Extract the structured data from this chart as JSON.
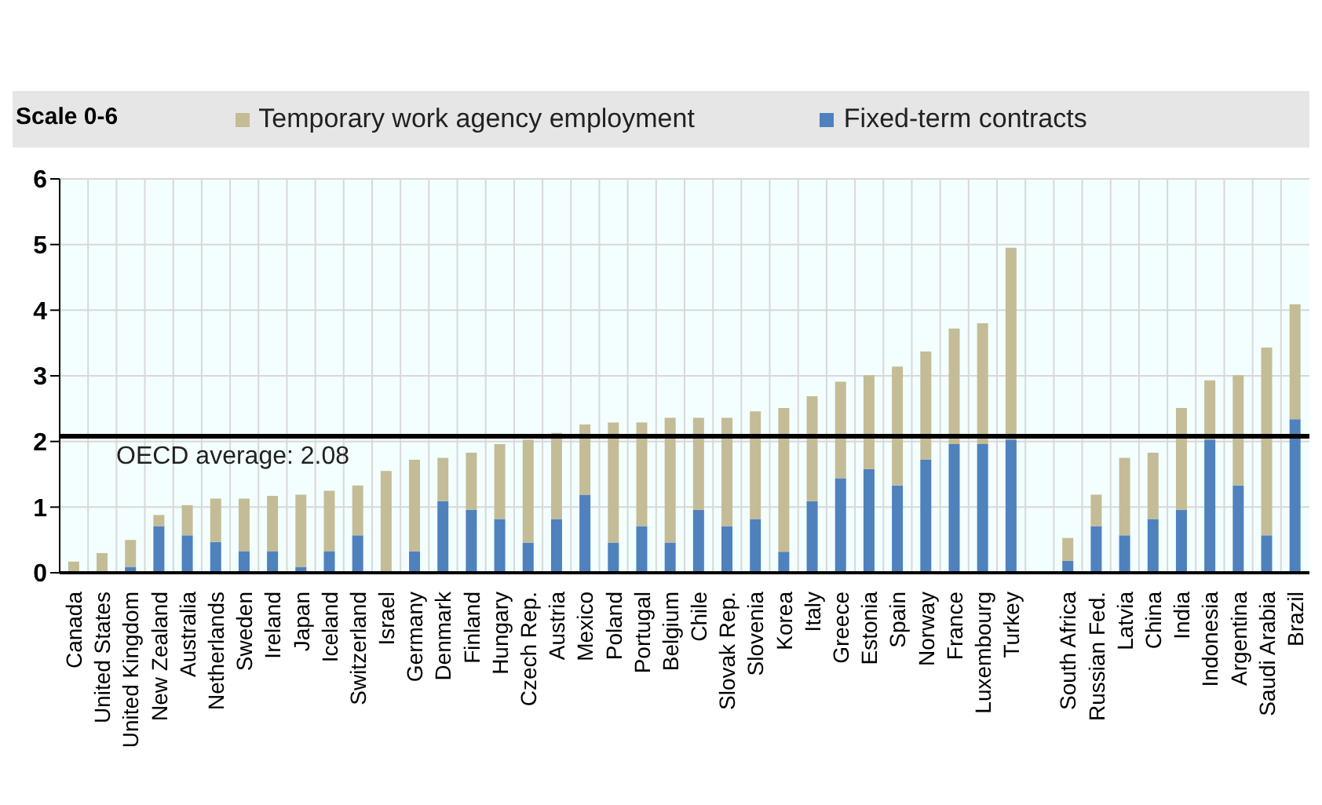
{
  "chart_data": {
    "type": "bar",
    "stacked": true,
    "ylabel": "Scale 0-6",
    "categories": [
      "Canada",
      "United States",
      "United Kingdom",
      "New Zealand",
      "Australia",
      "Netherlands",
      "Sweden",
      "Ireland",
      "Japan",
      "Iceland",
      "Switzerland",
      "Israel",
      "Germany",
      "Denmark",
      "Finland",
      "Hungary",
      "Czech Rep.",
      "Austria",
      "Mexico",
      "Poland",
      "Portugal",
      "Belgium",
      "Chile",
      "Slovak Rep.",
      "Slovenia",
      "Korea",
      "Italy",
      "Greece",
      "Estonia",
      "Spain",
      "Norway",
      "France",
      "Luxembourg",
      "Turkey",
      null,
      "South Africa",
      "Russian Fed.",
      "Latvia",
      "China",
      "India",
      "Indonesia",
      "Argentina",
      "Saudi Arabia",
      "Brazil"
    ],
    "series": [
      {
        "name": "Fixed-term contracts",
        "color": "#4f81bd",
        "values": [
          0,
          0,
          0.09,
          0.71,
          0.57,
          0.47,
          0.33,
          0.33,
          0.09,
          0.33,
          0.57,
          0,
          0.33,
          1.09,
          0.96,
          0.82,
          0.46,
          0.82,
          1.19,
          0.46,
          0.71,
          0.46,
          0.96,
          0.71,
          0.82,
          0.32,
          1.09,
          1.44,
          1.58,
          1.33,
          1.72,
          1.96,
          1.96,
          2.03,
          null,
          0.18,
          0.71,
          0.57,
          0.82,
          0.96,
          2.03,
          1.33,
          0.57,
          2.34
        ]
      },
      {
        "name": "Temporary work agency employment",
        "color": "#c4bc96",
        "values": [
          0.17,
          0.3,
          0.41,
          0.17,
          0.46,
          0.66,
          0.8,
          0.84,
          1.1,
          0.92,
          0.76,
          1.55,
          1.39,
          0.66,
          0.87,
          1.14,
          1.57,
          1.31,
          1.07,
          1.83,
          1.58,
          1.9,
          1.4,
          1.65,
          1.64,
          2.19,
          1.6,
          1.47,
          1.43,
          1.81,
          1.65,
          1.76,
          1.84,
          2.92,
          null,
          0.35,
          0.48,
          1.18,
          1.01,
          1.55,
          0.9,
          1.68,
          2.86,
          1.75
        ]
      }
    ],
    "ylim": [
      0,
      6
    ],
    "yticks": [
      0,
      1,
      2,
      3,
      4,
      5,
      6
    ],
    "grid": true,
    "legend": "top",
    "ref_lines": [
      {
        "axis": "y",
        "value": 2.08,
        "label": "OECD average: 2.08",
        "color": "#000000"
      }
    ]
  }
}
